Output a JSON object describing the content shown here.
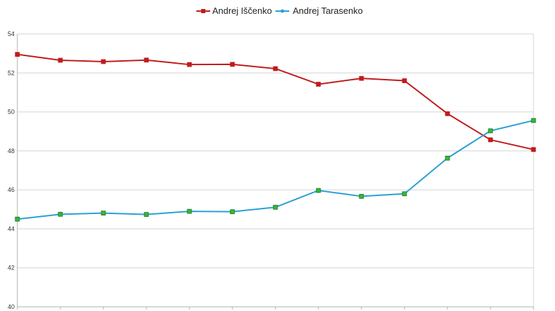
{
  "chart_data": {
    "type": "line",
    "legend_position": "top-center",
    "grid": true,
    "ylim": [
      40,
      54
    ],
    "yticks": [
      40,
      42,
      44,
      46,
      48,
      50,
      52,
      54
    ],
    "x_count": 13,
    "series": [
      {
        "name": "Andrej Iščenko",
        "color": "#c01c1c",
        "marker_fill": "#c01c1c",
        "values": [
          52.95,
          52.65,
          52.58,
          52.66,
          52.43,
          52.44,
          52.22,
          51.42,
          51.72,
          51.6,
          49.91,
          48.57,
          48.07
        ]
      },
      {
        "name": "Andrej Tarasenko",
        "color": "#2a9fd6",
        "marker_fill": "#33bb33",
        "values": [
          44.5,
          44.75,
          44.81,
          44.74,
          44.9,
          44.88,
          45.11,
          45.97,
          45.67,
          45.8,
          47.63,
          49.03,
          49.56
        ]
      }
    ]
  }
}
